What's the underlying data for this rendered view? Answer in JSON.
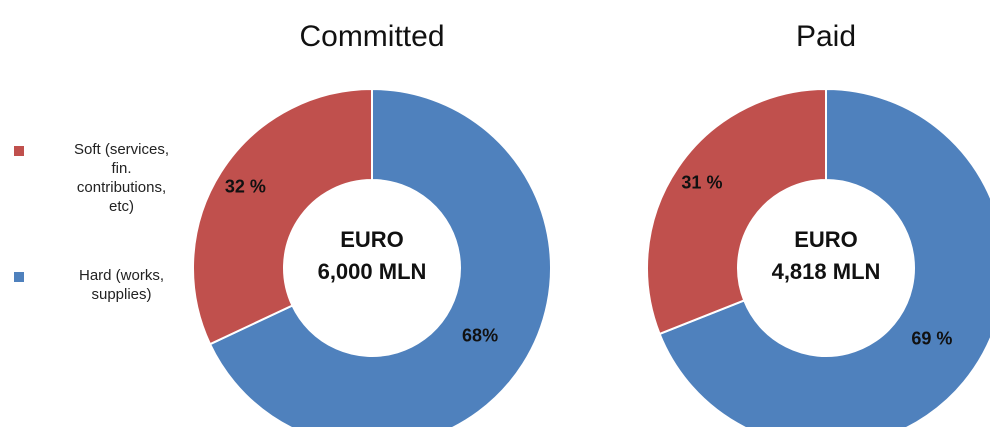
{
  "legend": {
    "entries": [
      {
        "name": "Soft (services, fin. contributions, etc)",
        "color": "#c0504d"
      },
      {
        "name": "Hard (works, supplies)",
        "color": "#4f81bd"
      }
    ]
  },
  "chart_data": [
    {
      "type": "donut",
      "title": "Committed",
      "values": [
        32,
        68
      ],
      "value_labels": [
        "32 %",
        "68%"
      ],
      "colors": [
        "#c0504d",
        "#4f81bd"
      ],
      "center_text": [
        "EURO",
        "6,000 MLN"
      ]
    },
    {
      "type": "donut",
      "title": "Paid",
      "values": [
        31,
        69
      ],
      "value_labels": [
        "31 %",
        "69 %"
      ],
      "colors": [
        "#c0504d",
        "#4f81bd"
      ],
      "center_text": [
        "EURO",
        "4,818 MLN"
      ]
    }
  ]
}
